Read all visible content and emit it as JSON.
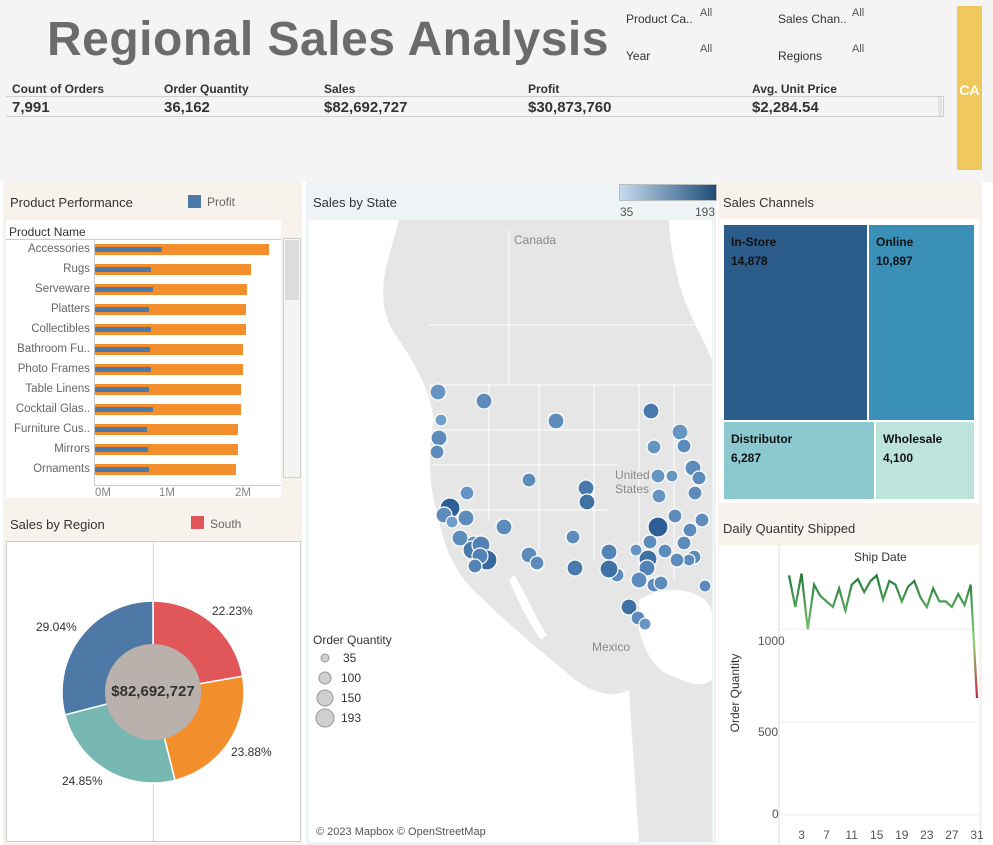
{
  "header": {
    "title": "Regional Sales Analysis",
    "filters": [
      {
        "label": "Product Ca..",
        "value": "All"
      },
      {
        "label": "Sales Chan..",
        "value": "All"
      },
      {
        "label": "Year",
        "value": "All"
      },
      {
        "label": "Regions",
        "value": "All"
      }
    ],
    "side_tab": "CA"
  },
  "kpis": [
    {
      "label": "Count of Orders",
      "value": "7,991"
    },
    {
      "label": "Order Quantity",
      "value": "36,162"
    },
    {
      "label": "Sales",
      "value": "$82,692,727"
    },
    {
      "label": "Profit",
      "value": "$30,873,760"
    },
    {
      "label": "Avg. Unit Price",
      "value": "$2,284.54"
    }
  ],
  "colors": {
    "sales_bar": "#f28e2b",
    "profit_bar": "#4e79a7",
    "south": "#e15759",
    "map_dot": "#5a8fc4",
    "accent_tab": "#f0c95e"
  },
  "product_performance": {
    "title": "Product Performance",
    "legend": "Profit",
    "column_header": "Product Name",
    "axis_ticks": [
      "0M",
      "1M",
      "2M"
    ]
  },
  "sales_map": {
    "title": "Sales by State",
    "color_legend_min": "35",
    "color_legend_max": "193",
    "labels": {
      "canada": "Canada",
      "us": "United States",
      "mexico": "Mexico"
    },
    "size_legend_title": "Order Quantity",
    "size_legend": [
      "35",
      "100",
      "150",
      "193"
    ],
    "attribution": "© 2023 Mapbox © OpenStreetMap"
  },
  "sales_channels": {
    "title": "Sales Channels",
    "items": [
      {
        "name": "In-Store",
        "value": "14,878",
        "color": "#2b5c8a"
      },
      {
        "name": "Online",
        "value": "10,897",
        "color": "#3a8fb7"
      },
      {
        "name": "Distributor",
        "value": "6,287",
        "color": "#8bc8d0"
      },
      {
        "name": "Wholesale",
        "value": "4,100",
        "color": "#bde4da"
      }
    ]
  },
  "sales_region": {
    "title": "Sales by Region",
    "legend": "South",
    "center_label": "$82,692,727",
    "labels": [
      "22.23%",
      "23.88%",
      "24.85%",
      "29.04%"
    ]
  },
  "daily_quantity": {
    "title": "Daily Quantity Shipped",
    "x_title": "Ship Date",
    "y_title": "Order Quantity",
    "y_ticks": [
      "1000",
      "500",
      "0"
    ],
    "x_ticks": [
      "3",
      "7",
      "11",
      "15",
      "19",
      "23",
      "27",
      "31"
    ]
  },
  "chart_data": [
    {
      "type": "bar",
      "title": "Product Performance",
      "categories": [
        "Accessories",
        "Rugs",
        "Serveware",
        "Platters",
        "Collectibles",
        "Bathroom Fu..",
        "Photo Frames",
        "Table Linens",
        "Cocktail Glas..",
        "Furniture Cus..",
        "Mirrors",
        "Ornaments"
      ],
      "series": [
        {
          "name": "",
          "values": [
            2.35,
            2.1,
            2.05,
            2.04,
            2.04,
            2.0,
            1.99,
            1.97,
            1.97,
            1.93,
            1.93,
            1.9
          ]
        },
        {
          "name": "Profit",
          "values": [
            0.9,
            0.75,
            0.78,
            0.73,
            0.75,
            0.74,
            0.75,
            0.73,
            0.78,
            0.7,
            0.72,
            0.73
          ]
        }
      ],
      "xlim": [
        0,
        2.4
      ]
    },
    {
      "type": "pie",
      "title": "Sales by Region",
      "values": [
        22.23,
        23.88,
        24.85,
        29.04
      ],
      "colors": [
        "#e15759",
        "#f28e2b",
        "#76b7b2",
        "#4e79a7"
      ]
    },
    {
      "type": "line",
      "title": "Daily Quantity Shipped",
      "x": [
        1,
        2,
        3,
        4,
        5,
        6,
        7,
        8,
        9,
        10,
        11,
        12,
        13,
        14,
        15,
        16,
        17,
        18,
        19,
        20,
        21,
        22,
        23,
        24,
        25,
        26,
        27,
        28,
        29,
        30,
        31
      ],
      "values": [
        1290,
        1120,
        1300,
        1000,
        1240,
        1180,
        1150,
        1120,
        1220,
        1100,
        1240,
        1270,
        1200,
        1260,
        1290,
        1160,
        1260,
        1240,
        1150,
        1230,
        1260,
        1170,
        1120,
        1220,
        1150,
        1150,
        1120,
        1190,
        1130,
        1240,
        630
      ],
      "ylim": [
        0,
        1400
      ]
    },
    {
      "type": "scatter",
      "title": "Sales by State",
      "color_range": [
        35,
        193
      ]
    }
  ]
}
